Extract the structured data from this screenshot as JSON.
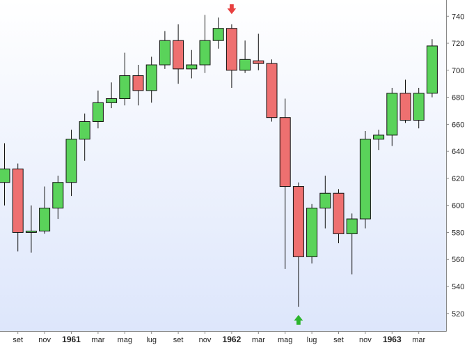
{
  "chart_data": {
    "type": "candlestick",
    "title": "",
    "xlabel": "",
    "ylabel": "",
    "ylim": [
      507,
      752
    ],
    "grid": false,
    "colors": {
      "up": "#5ad35a",
      "down": "#ee7070",
      "up_marker": "#2db52d",
      "down_marker": "#e84040",
      "axis": "#888888",
      "background_top": "#ffffff",
      "background_bottom": "#dde6fb"
    },
    "y_ticks": [
      520,
      540,
      560,
      580,
      600,
      620,
      640,
      660,
      680,
      700,
      720,
      740
    ],
    "y_tick_labels": [
      "520",
      "540",
      "560",
      "580",
      "600",
      "620",
      "640",
      "660",
      "680",
      "700",
      "720",
      "740"
    ],
    "x_tick_labels": [
      {
        "label": "set",
        "period": "1960-09",
        "bold": false
      },
      {
        "label": "nov",
        "period": "1960-11",
        "bold": false
      },
      {
        "label": "1961",
        "period": "1961-01",
        "bold": true
      },
      {
        "label": "mar",
        "period": "1961-03",
        "bold": false
      },
      {
        "label": "mag",
        "period": "1961-05",
        "bold": false
      },
      {
        "label": "lug",
        "period": "1961-07",
        "bold": false
      },
      {
        "label": "set",
        "period": "1961-09",
        "bold": false
      },
      {
        "label": "nov",
        "period": "1961-11",
        "bold": false
      },
      {
        "label": "1962",
        "period": "1962-01",
        "bold": true
      },
      {
        "label": "mar",
        "period": "1962-03",
        "bold": false
      },
      {
        "label": "mag",
        "period": "1962-05",
        "bold": false
      },
      {
        "label": "lug",
        "period": "1962-07",
        "bold": false
      },
      {
        "label": "set",
        "period": "1962-09",
        "bold": false
      },
      {
        "label": "nov",
        "period": "1962-11",
        "bold": false
      },
      {
        "label": "1963",
        "period": "1963-01",
        "bold": true
      },
      {
        "label": "mar",
        "period": "1963-03",
        "bold": false
      }
    ],
    "candles": [
      {
        "period": "1960-08",
        "open": 617,
        "high": 646,
        "low": 600,
        "close": 627
      },
      {
        "period": "1960-09",
        "open": 627,
        "high": 631,
        "low": 566,
        "close": 580
      },
      {
        "period": "1960-10",
        "open": 580,
        "high": 600,
        "low": 565,
        "close": 581
      },
      {
        "period": "1960-11",
        "open": 581,
        "high": 614,
        "low": 579,
        "close": 598
      },
      {
        "period": "1960-12",
        "open": 598,
        "high": 622,
        "low": 590,
        "close": 617
      },
      {
        "period": "1961-01",
        "open": 617,
        "high": 656,
        "low": 607,
        "close": 649
      },
      {
        "period": "1961-02",
        "open": 649,
        "high": 668,
        "low": 633,
        "close": 662
      },
      {
        "period": "1961-03",
        "open": 662,
        "high": 685,
        "low": 657,
        "close": 676
      },
      {
        "period": "1961-04",
        "open": 676,
        "high": 691,
        "low": 672,
        "close": 679
      },
      {
        "period": "1961-05",
        "open": 679,
        "high": 713,
        "low": 674,
        "close": 696
      },
      {
        "period": "1961-06",
        "open": 696,
        "high": 704,
        "low": 674,
        "close": 685
      },
      {
        "period": "1961-07",
        "open": 685,
        "high": 710,
        "low": 676,
        "close": 704
      },
      {
        "period": "1961-08",
        "open": 704,
        "high": 729,
        "low": 701,
        "close": 722
      },
      {
        "period": "1961-09",
        "open": 722,
        "high": 734,
        "low": 690,
        "close": 701
      },
      {
        "period": "1961-10",
        "open": 701,
        "high": 715,
        "low": 694,
        "close": 704
      },
      {
        "period": "1961-11",
        "open": 704,
        "high": 741,
        "low": 698,
        "close": 722
      },
      {
        "period": "1961-12",
        "open": 722,
        "high": 739,
        "low": 716,
        "close": 731
      },
      {
        "period": "1962-01",
        "open": 731,
        "high": 734,
        "low": 687,
        "close": 700
      },
      {
        "period": "1962-02",
        "open": 700,
        "high": 722,
        "low": 698,
        "close": 708
      },
      {
        "period": "1962-03",
        "open": 707,
        "high": 727,
        "low": 700,
        "close": 705
      },
      {
        "period": "1962-04",
        "open": 705,
        "high": 708,
        "low": 662,
        "close": 665
      },
      {
        "period": "1962-05",
        "open": 665,
        "high": 679,
        "low": 553,
        "close": 614
      },
      {
        "period": "1962-06",
        "open": 614,
        "high": 617,
        "low": 525,
        "close": 562
      },
      {
        "period": "1962-07",
        "open": 562,
        "high": 601,
        "low": 557,
        "close": 598
      },
      {
        "period": "1962-08",
        "open": 598,
        "high": 622,
        "low": 583,
        "close": 609
      },
      {
        "period": "1962-09",
        "open": 609,
        "high": 612,
        "low": 572,
        "close": 579
      },
      {
        "period": "1962-10",
        "open": 579,
        "high": 594,
        "low": 549,
        "close": 590
      },
      {
        "period": "1962-11",
        "open": 590,
        "high": 655,
        "low": 583,
        "close": 649
      },
      {
        "period": "1962-12",
        "open": 649,
        "high": 656,
        "low": 641,
        "close": 652
      },
      {
        "period": "1963-01",
        "open": 652,
        "high": 687,
        "low": 644,
        "close": 683
      },
      {
        "period": "1963-02",
        "open": 683,
        "high": 693,
        "low": 661,
        "close": 663
      },
      {
        "period": "1963-03",
        "open": 663,
        "high": 687,
        "low": 657,
        "close": 683
      },
      {
        "period": "1963-04",
        "open": 683,
        "high": 723,
        "low": 680,
        "close": 718
      }
    ],
    "markers": [
      {
        "type": "down-arrow",
        "period": "1962-01",
        "price": 745
      },
      {
        "type": "up-arrow",
        "period": "1962-06",
        "price": 515
      }
    ]
  }
}
